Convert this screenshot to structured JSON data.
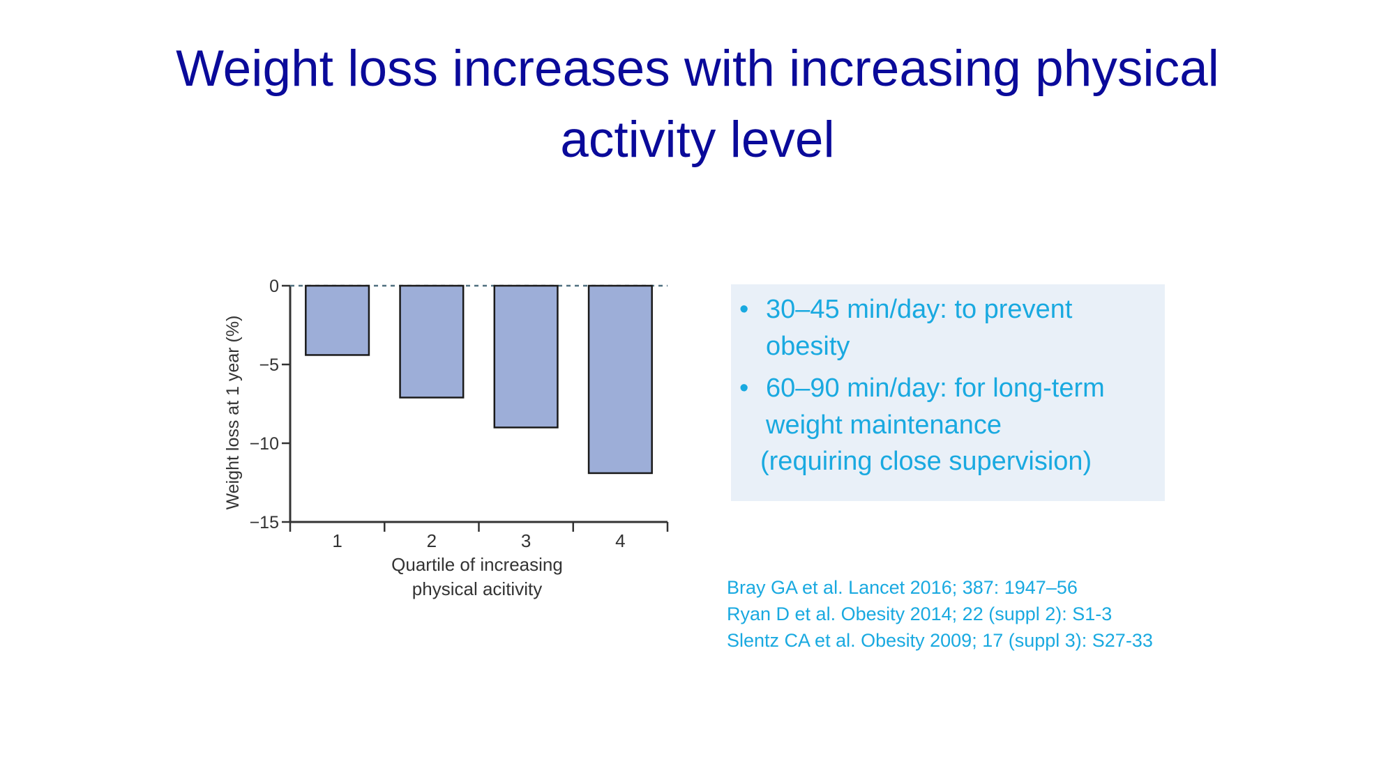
{
  "slide": {
    "title_lines": [
      "Weight loss increases with increasing physical",
      "activity level"
    ],
    "title_color": "#0a0a9a"
  },
  "chart_data": {
    "type": "bar",
    "categories": [
      "1",
      "2",
      "3",
      "4"
    ],
    "values": [
      -4.4,
      -7.1,
      -9.0,
      -11.9
    ],
    "xlabel_lines": [
      "Quartile of increasing",
      "physical acitivity"
    ],
    "ylabel": "Weight loss at 1 year (%)",
    "ylim": [
      -15,
      0
    ],
    "yticks": [
      0,
      -5,
      -10,
      -15
    ],
    "ytick_labels": [
      "0",
      "−5",
      "−10",
      "−15"
    ],
    "reference_line": 0,
    "bar_color": "#9daed8",
    "grid": false
  },
  "bullets": {
    "items": [
      {
        "marker": "•",
        "lines": [
          "30–45 min/day: to prevent",
          "obesity"
        ]
      },
      {
        "marker": "•",
        "lines": [
          "60–90 min/day: for long-term",
          "weight maintenance"
        ]
      }
    ],
    "extra_line": "(requiring close supervision)",
    "text_color": "#19a9e0",
    "box_color": "#e9f0f8"
  },
  "references": [
    "Bray GA et al. Lancet 2016; 387: 1947–56",
    "Ryan D et al. Obesity 2014; 22 (suppl 2): S1-3",
    "Slentz CA et al. Obesity 2009; 17 (suppl 3): S27-33"
  ]
}
